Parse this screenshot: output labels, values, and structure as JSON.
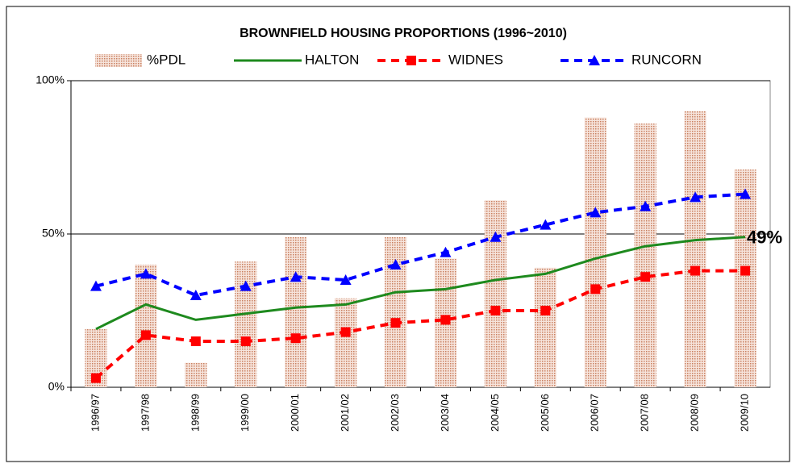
{
  "chart_data": {
    "type": "bar_line",
    "title": "BROWNFIELD HOUSING PROPORTIONS (1996~2010)",
    "categories": [
      "1996/97",
      "1997/98",
      "1998/99",
      "1999/00",
      "2000/01",
      "2001/02",
      "2002/03",
      "2003/04",
      "2004/05",
      "2005/06",
      "2006/07",
      "2007/08",
      "2008/09",
      "2009/10"
    ],
    "series": [
      {
        "name": "%PDL",
        "type": "bar",
        "color": "#c9805f",
        "values": [
          19,
          40,
          8,
          41,
          49,
          29,
          49,
          42,
          61,
          39,
          88,
          86,
          90,
          71
        ]
      },
      {
        "name": "HALTON",
        "type": "line",
        "color": "#1e8a1e",
        "style": "solid",
        "values": [
          19,
          27,
          22,
          24,
          26,
          27,
          31,
          32,
          35,
          37,
          42,
          46,
          48,
          49
        ]
      },
      {
        "name": "WIDNES",
        "type": "line",
        "color": "#ff0000",
        "style": "dashed",
        "marker": "square",
        "values": [
          3,
          17,
          15,
          15,
          16,
          18,
          21,
          22,
          25,
          25,
          32,
          36,
          38,
          38
        ]
      },
      {
        "name": "RUNCORN",
        "type": "line",
        "color": "#0000ff",
        "style": "dashed",
        "marker": "triangle",
        "values": [
          33,
          37,
          30,
          33,
          36,
          35,
          40,
          44,
          49,
          53,
          57,
          59,
          62,
          63
        ]
      }
    ],
    "annotation": "49%",
    "ylim": [
      0,
      100
    ],
    "yticks": [
      {
        "value": 0,
        "label": "0%"
      },
      {
        "value": 50,
        "label": "50%"
      },
      {
        "value": 100,
        "label": "100%"
      }
    ],
    "grid": true,
    "legend": "top"
  }
}
